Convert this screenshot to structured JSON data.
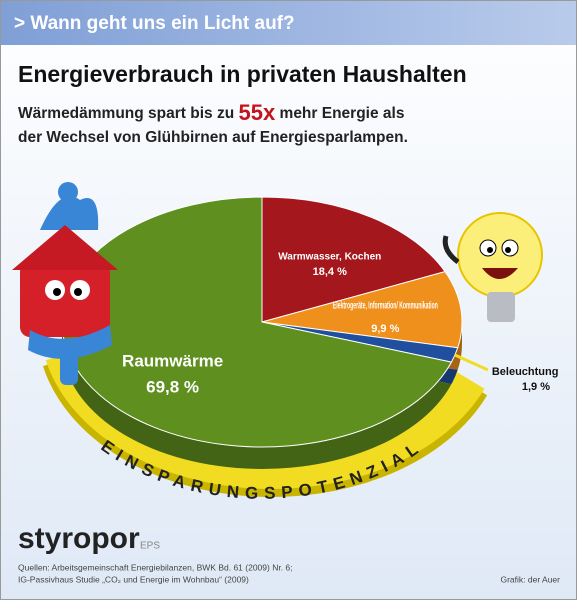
{
  "chart_data": {
    "type": "pie",
    "header": "> Wann geht uns ein Licht auf?",
    "title": "Energieverbrauch in privaten Haushalten",
    "subtitle": [
      "Wärmedämmung spart bis zu",
      "55x",
      "mehr Energie als",
      "der Wechsel von Glühbirnen auf Energiesparlampen."
    ],
    "categories": [
      "Warmwasser, Kochen",
      "Elektrogeräte, Information/ Kommunikation",
      "Beleuchtung",
      "Raumwärme"
    ],
    "values": [
      18.4,
      9.9,
      1.9,
      69.8
    ],
    "value_labels": [
      "18,4 %",
      "9,9 %",
      "1,9 %",
      "69,8 %"
    ],
    "colors": [
      "#a3171d",
      "#ef8f1c",
      "#1f4f9e",
      "#5f8f1e"
    ],
    "annotation": "EINSPARUNGSPOTENZIAL",
    "brand": "styropor",
    "brand_suffix": "EPS",
    "sources": [
      "Quellen: Arbeitsgemeinschaft Energiebilanzen, BWK Bd. 61 (2009) Nr. 6;",
      "IG-Passivhaus Studie „CO₂ und Energie im Wohnbau“ (2009)"
    ],
    "credit": "Grafik: der Auer"
  }
}
